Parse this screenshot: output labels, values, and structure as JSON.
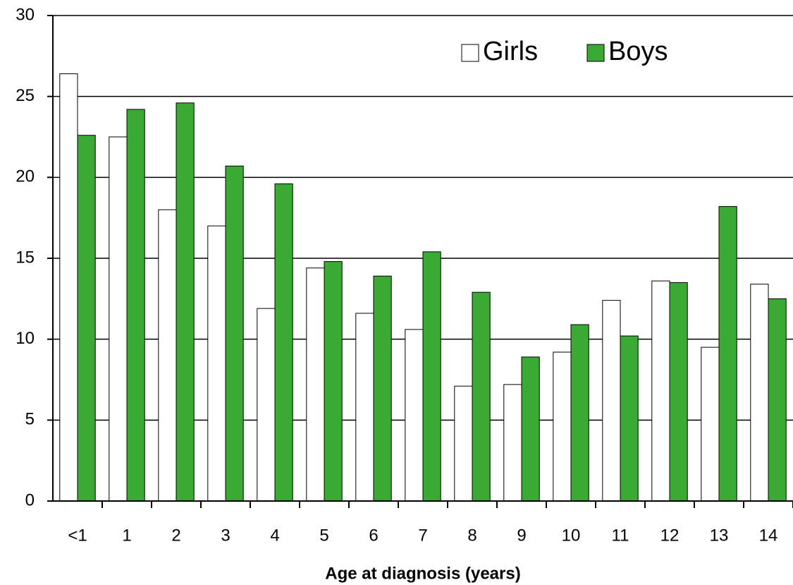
{
  "chart_data": {
    "type": "bar",
    "x_label": "Age at diagnosis (years)",
    "categories": [
      "<1",
      "1",
      "2",
      "3",
      "4",
      "5",
      "6",
      "7",
      "8",
      "9",
      "10",
      "11",
      "12",
      "13",
      "14"
    ],
    "series": [
      {
        "name": "Girls",
        "color": "#ffffff",
        "values": [
          26.4,
          22.5,
          18.0,
          17.0,
          11.9,
          14.4,
          11.6,
          10.6,
          7.1,
          7.2,
          9.2,
          12.4,
          13.6,
          9.5,
          13.4
        ]
      },
      {
        "name": "Boys",
        "color": "#3aaa35",
        "values": [
          22.6,
          24.2,
          24.6,
          20.7,
          19.6,
          14.8,
          13.9,
          15.4,
          12.9,
          8.9,
          10.9,
          10.2,
          13.5,
          18.2,
          12.5
        ]
      }
    ],
    "ylim": [
      0,
      30
    ],
    "yticks": [
      0,
      5,
      10,
      15,
      20,
      25,
      30
    ],
    "grid": true,
    "legend": "upper right"
  }
}
